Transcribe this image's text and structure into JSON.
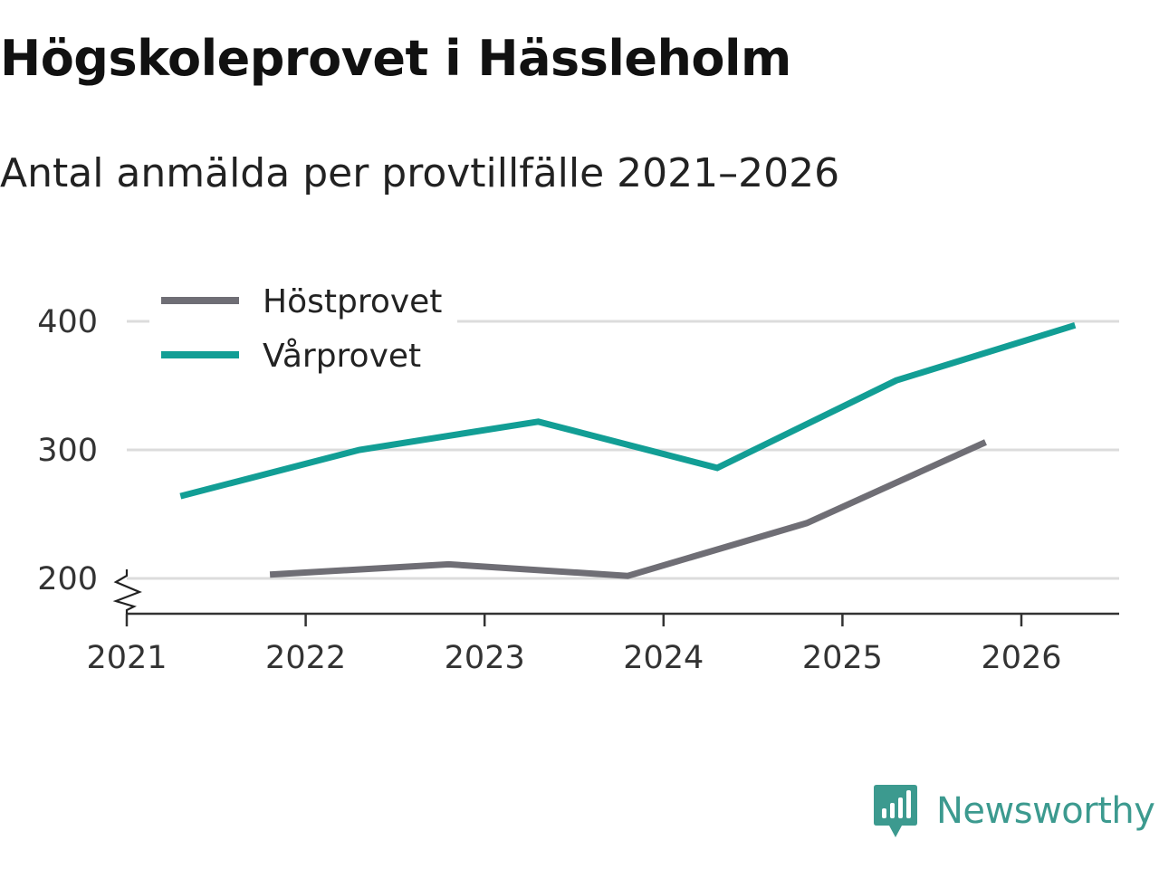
{
  "header": {
    "title": "Högskoleprovet i Hässleholm",
    "subtitle": "Antal anmälda per provtillfälle 2021–2026"
  },
  "brand": {
    "name": "Newsworthy",
    "color": "#3c9a8f"
  },
  "chart_data": {
    "type": "line",
    "title": "Högskoleprovet i Hässleholm",
    "subtitle": "Antal anmälda per provtillfälle 2021–2026",
    "xlabel": "",
    "ylabel": "",
    "xlim": [
      2021,
      2026.6
    ],
    "ylim": [
      172,
      420
    ],
    "x_ticks": [
      "2021",
      "2022",
      "2023",
      "2024",
      "2025",
      "2026"
    ],
    "y_ticks": [
      200,
      300,
      400
    ],
    "grid": true,
    "axis_break": true,
    "legend": "top-left",
    "series": [
      {
        "name": "Höstprovet",
        "color": "#6f6e75",
        "points": [
          {
            "x": 2021.8,
            "y": 203
          },
          {
            "x": 2022.8,
            "y": 211
          },
          {
            "x": 2023.8,
            "y": 202
          },
          {
            "x": 2024.8,
            "y": 243
          },
          {
            "x": 2025.8,
            "y": 306
          }
        ]
      },
      {
        "name": "Vårprovet",
        "color": "#129e95",
        "points": [
          {
            "x": 2021.3,
            "y": 264
          },
          {
            "x": 2022.3,
            "y": 300
          },
          {
            "x": 2023.3,
            "y": 322
          },
          {
            "x": 2024.3,
            "y": 286
          },
          {
            "x": 2025.3,
            "y": 354
          },
          {
            "x": 2026.3,
            "y": 397
          }
        ]
      }
    ]
  }
}
